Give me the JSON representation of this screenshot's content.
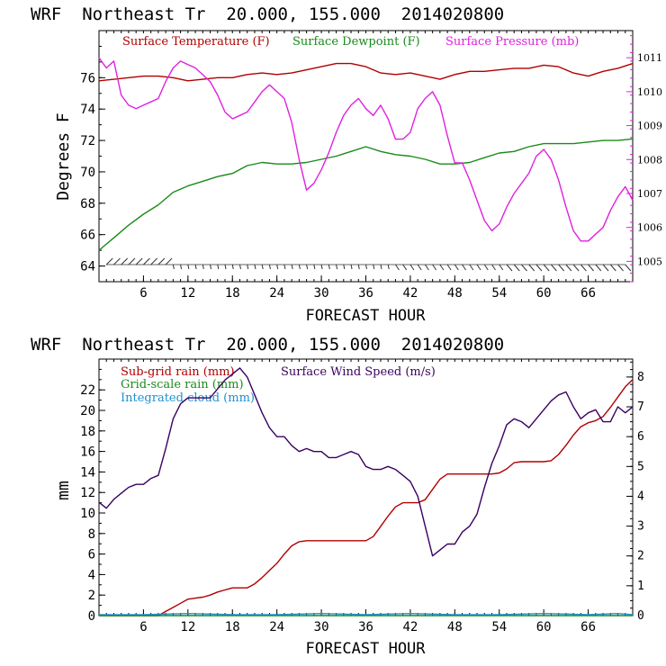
{
  "chart_data": [
    {
      "type": "line",
      "title": "WRF  Northeast Tr  20.000, 155.000  2014020800",
      "xlabel": "FORECAST HOUR",
      "ylabel": "Degrees F",
      "xlim": [
        0,
        72
      ],
      "ylim": [
        63,
        79
      ],
      "x_ticks": [
        "6",
        "12",
        "18",
        "24",
        "30",
        "36",
        "42",
        "48",
        "54",
        "60",
        "66"
      ],
      "x_tick_values": [
        6,
        12,
        18,
        24,
        30,
        36,
        42,
        48,
        54,
        60,
        66
      ],
      "y_ticks": [
        "64",
        "66",
        "68",
        "70",
        "72",
        "74",
        "76"
      ],
      "y_tick_values": [
        64,
        66,
        68,
        70,
        72,
        74,
        76
      ],
      "y2label": "",
      "y2lim": [
        1004.4,
        1011.8
      ],
      "y2_ticks": [
        "1005",
        "1006",
        "1007",
        "1008",
        "1009",
        "1010",
        "1011"
      ],
      "y2_tick_values": [
        1005,
        1006,
        1007,
        1008,
        1009,
        1010,
        1011
      ],
      "series": [
        {
          "name": "Surface Temperature (F)",
          "color": "#b00000",
          "axis": "left",
          "x": [
            0,
            2,
            4,
            6,
            8,
            10,
            12,
            14,
            16,
            18,
            20,
            22,
            24,
            26,
            28,
            30,
            32,
            34,
            36,
            38,
            40,
            42,
            44,
            46,
            48,
            50,
            52,
            54,
            56,
            58,
            60,
            62,
            64,
            66,
            68,
            70,
            72
          ],
          "y": [
            75.8,
            75.9,
            76.0,
            76.1,
            76.1,
            76.0,
            75.8,
            75.9,
            76.0,
            76.0,
            76.2,
            76.3,
            76.2,
            76.3,
            76.5,
            76.7,
            76.9,
            76.9,
            76.7,
            76.3,
            76.2,
            76.3,
            76.1,
            75.9,
            76.2,
            76.4,
            76.4,
            76.5,
            76.6,
            76.6,
            76.8,
            76.7,
            76.3,
            76.1,
            76.4,
            76.6,
            76.9
          ]
        },
        {
          "name": "Surface Dewpoint (F)",
          "color": "#1a8a1a",
          "axis": "left",
          "x": [
            0,
            2,
            4,
            6,
            8,
            10,
            12,
            14,
            16,
            18,
            20,
            22,
            24,
            26,
            28,
            30,
            32,
            34,
            36,
            38,
            40,
            42,
            44,
            46,
            48,
            50,
            52,
            54,
            56,
            58,
            60,
            62,
            64,
            66,
            68,
            70,
            72
          ],
          "y": [
            65.0,
            65.8,
            66.6,
            67.3,
            67.9,
            68.7,
            69.1,
            69.4,
            69.7,
            69.9,
            70.4,
            70.6,
            70.5,
            70.5,
            70.6,
            70.8,
            71.0,
            71.3,
            71.6,
            71.3,
            71.1,
            71.0,
            70.8,
            70.5,
            70.5,
            70.6,
            70.9,
            71.2,
            71.3,
            71.6,
            71.8,
            71.8,
            71.8,
            71.9,
            72.0,
            72.0,
            72.1
          ]
        },
        {
          "name": "Surface Pressure (mb)",
          "color": "#e020e0",
          "axis": "right",
          "x": [
            0,
            1,
            2,
            3,
            4,
            5,
            6,
            7,
            8,
            9,
            10,
            11,
            12,
            13,
            14,
            15,
            16,
            17,
            18,
            19,
            20,
            21,
            22,
            23,
            24,
            25,
            26,
            27,
            28,
            29,
            30,
            31,
            32,
            33,
            34,
            35,
            36,
            37,
            38,
            39,
            40,
            41,
            42,
            43,
            44,
            45,
            46,
            47,
            48,
            49,
            50,
            51,
            52,
            53,
            54,
            55,
            56,
            57,
            58,
            59,
            60,
            61,
            62,
            63,
            64,
            65,
            66,
            67,
            68,
            69,
            70,
            71,
            72
          ],
          "y": [
            1011.0,
            1010.7,
            1010.9,
            1009.9,
            1009.6,
            1009.5,
            1009.6,
            1009.7,
            1009.8,
            1010.3,
            1010.7,
            1010.9,
            1010.8,
            1010.7,
            1010.5,
            1010.3,
            1009.9,
            1009.4,
            1009.2,
            1009.3,
            1009.4,
            1009.7,
            1010.0,
            1010.2,
            1010.0,
            1009.8,
            1009.1,
            1008.0,
            1007.1,
            1007.3,
            1007.7,
            1008.2,
            1008.8,
            1009.3,
            1009.6,
            1009.8,
            1009.5,
            1009.3,
            1009.6,
            1009.2,
            1008.6,
            1008.6,
            1008.8,
            1009.5,
            1009.8,
            1010.0,
            1009.6,
            1008.7,
            1007.9,
            1007.9,
            1007.4,
            1006.8,
            1006.2,
            1005.9,
            1006.1,
            1006.6,
            1007.0,
            1007.3,
            1007.6,
            1008.1,
            1008.3,
            1008.0,
            1007.4,
            1006.6,
            1005.9,
            1005.6,
            1005.6,
            1005.8,
            1006.0,
            1006.5,
            1006.9,
            1007.2,
            1006.8
          ]
        }
      ],
      "wind_barbs": "row of wind barbs along the bottom of the panel",
      "legend_placement": "top",
      "grid": false
    },
    {
      "type": "line",
      "title": "WRF  Northeast Tr  20.000, 155.000  2014020800",
      "xlabel": "FORECAST HOUR",
      "ylabel": "mm",
      "xlim": [
        0,
        72
      ],
      "ylim": [
        0,
        25
      ],
      "x_ticks": [
        "6",
        "12",
        "18",
        "24",
        "30",
        "36",
        "42",
        "48",
        "54",
        "60",
        "66"
      ],
      "x_tick_values": [
        6,
        12,
        18,
        24,
        30,
        36,
        42,
        48,
        54,
        60,
        66
      ],
      "y_ticks": [
        "0",
        "2",
        "4",
        "6",
        "8",
        "10",
        "12",
        "14",
        "16",
        "18",
        "20",
        "22"
      ],
      "y_tick_values": [
        0,
        2,
        4,
        6,
        8,
        10,
        12,
        14,
        16,
        18,
        20,
        22
      ],
      "y2lim": [
        0,
        8.6
      ],
      "y2_ticks": [
        "0",
        "1",
        "2",
        "3",
        "4",
        "5",
        "6",
        "7",
        "8"
      ],
      "y2_tick_values": [
        0,
        1,
        2,
        3,
        4,
        5,
        6,
        7,
        8
      ],
      "series": [
        {
          "name": "Sub-grid rain (mm)",
          "color": "#b00000",
          "axis": "left",
          "x": [
            0,
            7,
            8,
            9,
            10,
            11,
            12,
            13,
            14,
            15,
            16,
            17,
            18,
            19,
            20,
            21,
            22,
            23,
            24,
            25,
            26,
            27,
            28,
            29,
            30,
            31,
            32,
            33,
            34,
            35,
            36,
            37,
            38,
            39,
            40,
            41,
            42,
            43,
            44,
            45,
            46,
            47,
            48,
            49,
            50,
            51,
            52,
            53,
            54,
            55,
            56,
            57,
            58,
            59,
            60,
            61,
            62,
            63,
            64,
            65,
            66,
            67,
            68,
            69,
            70,
            71,
            72
          ],
          "y": [
            0,
            0,
            0.0,
            0.4,
            0.8,
            1.2,
            1.6,
            1.7,
            1.8,
            2.0,
            2.3,
            2.5,
            2.7,
            2.7,
            2.7,
            3.1,
            3.7,
            4.4,
            5.1,
            6.0,
            6.8,
            7.2,
            7.3,
            7.3,
            7.3,
            7.3,
            7.3,
            7.3,
            7.3,
            7.3,
            7.3,
            7.7,
            8.7,
            9.7,
            10.6,
            11.0,
            11.0,
            11.0,
            11.3,
            12.3,
            13.3,
            13.8,
            13.8,
            13.8,
            13.8,
            13.8,
            13.8,
            13.8,
            13.9,
            14.3,
            14.9,
            15.0,
            15.0,
            15.0,
            15.0,
            15.1,
            15.7,
            16.6,
            17.6,
            18.4,
            18.8,
            19.0,
            19.4,
            20.3,
            21.3,
            22.3,
            23.0
          ]
        },
        {
          "name": "Grid-scale rain (mm)",
          "color": "#1a8a1a",
          "axis": "left",
          "x": [
            0,
            72
          ],
          "y": [
            0,
            0
          ]
        },
        {
          "name": "Integrated cloud (mm)",
          "color": "#1e90d0",
          "axis": "left",
          "x": [
            0,
            6,
            12,
            18,
            24,
            30,
            36,
            42,
            48,
            54,
            60,
            66,
            70,
            72
          ],
          "y": [
            0.1,
            0.1,
            0.2,
            0.1,
            0.1,
            0.2,
            0.1,
            0.2,
            0.1,
            0.1,
            0.2,
            0.1,
            0.2,
            0.1
          ]
        },
        {
          "name": "Surface Wind Speed (m/s)",
          "color": "#3a0060",
          "axis": "right",
          "x": [
            0,
            1,
            2,
            3,
            4,
            5,
            6,
            7,
            8,
            9,
            10,
            11,
            12,
            13,
            14,
            15,
            16,
            17,
            18,
            19,
            20,
            21,
            22,
            23,
            24,
            25,
            26,
            27,
            28,
            29,
            30,
            31,
            32,
            33,
            34,
            35,
            36,
            37,
            38,
            39,
            40,
            41,
            42,
            43,
            44,
            45,
            46,
            47,
            48,
            49,
            50,
            51,
            52,
            53,
            54,
            55,
            56,
            57,
            58,
            59,
            60,
            61,
            62,
            63,
            64,
            65,
            66,
            67,
            68,
            69,
            70,
            71,
            72
          ],
          "y": [
            3.8,
            3.6,
            3.9,
            4.1,
            4.3,
            4.4,
            4.4,
            4.6,
            4.7,
            5.6,
            6.6,
            7.1,
            7.3,
            7.3,
            7.3,
            7.3,
            7.6,
            7.9,
            8.1,
            8.3,
            8.0,
            7.4,
            6.8,
            6.3,
            6.0,
            6.0,
            5.7,
            5.5,
            5.6,
            5.5,
            5.5,
            5.3,
            5.3,
            5.4,
            5.5,
            5.4,
            5.0,
            4.9,
            4.9,
            5.0,
            4.9,
            4.7,
            4.5,
            4.0,
            3.0,
            2.0,
            2.2,
            2.4,
            2.4,
            2.8,
            3.0,
            3.4,
            4.3,
            5.1,
            5.7,
            6.4,
            6.6,
            6.5,
            6.3,
            6.6,
            6.9,
            7.2,
            7.4,
            7.5,
            7.0,
            6.6,
            6.8,
            6.9,
            6.5,
            6.5,
            7.0,
            6.8,
            7.0
          ]
        }
      ],
      "legend_placement": "top-left",
      "grid": false
    }
  ]
}
